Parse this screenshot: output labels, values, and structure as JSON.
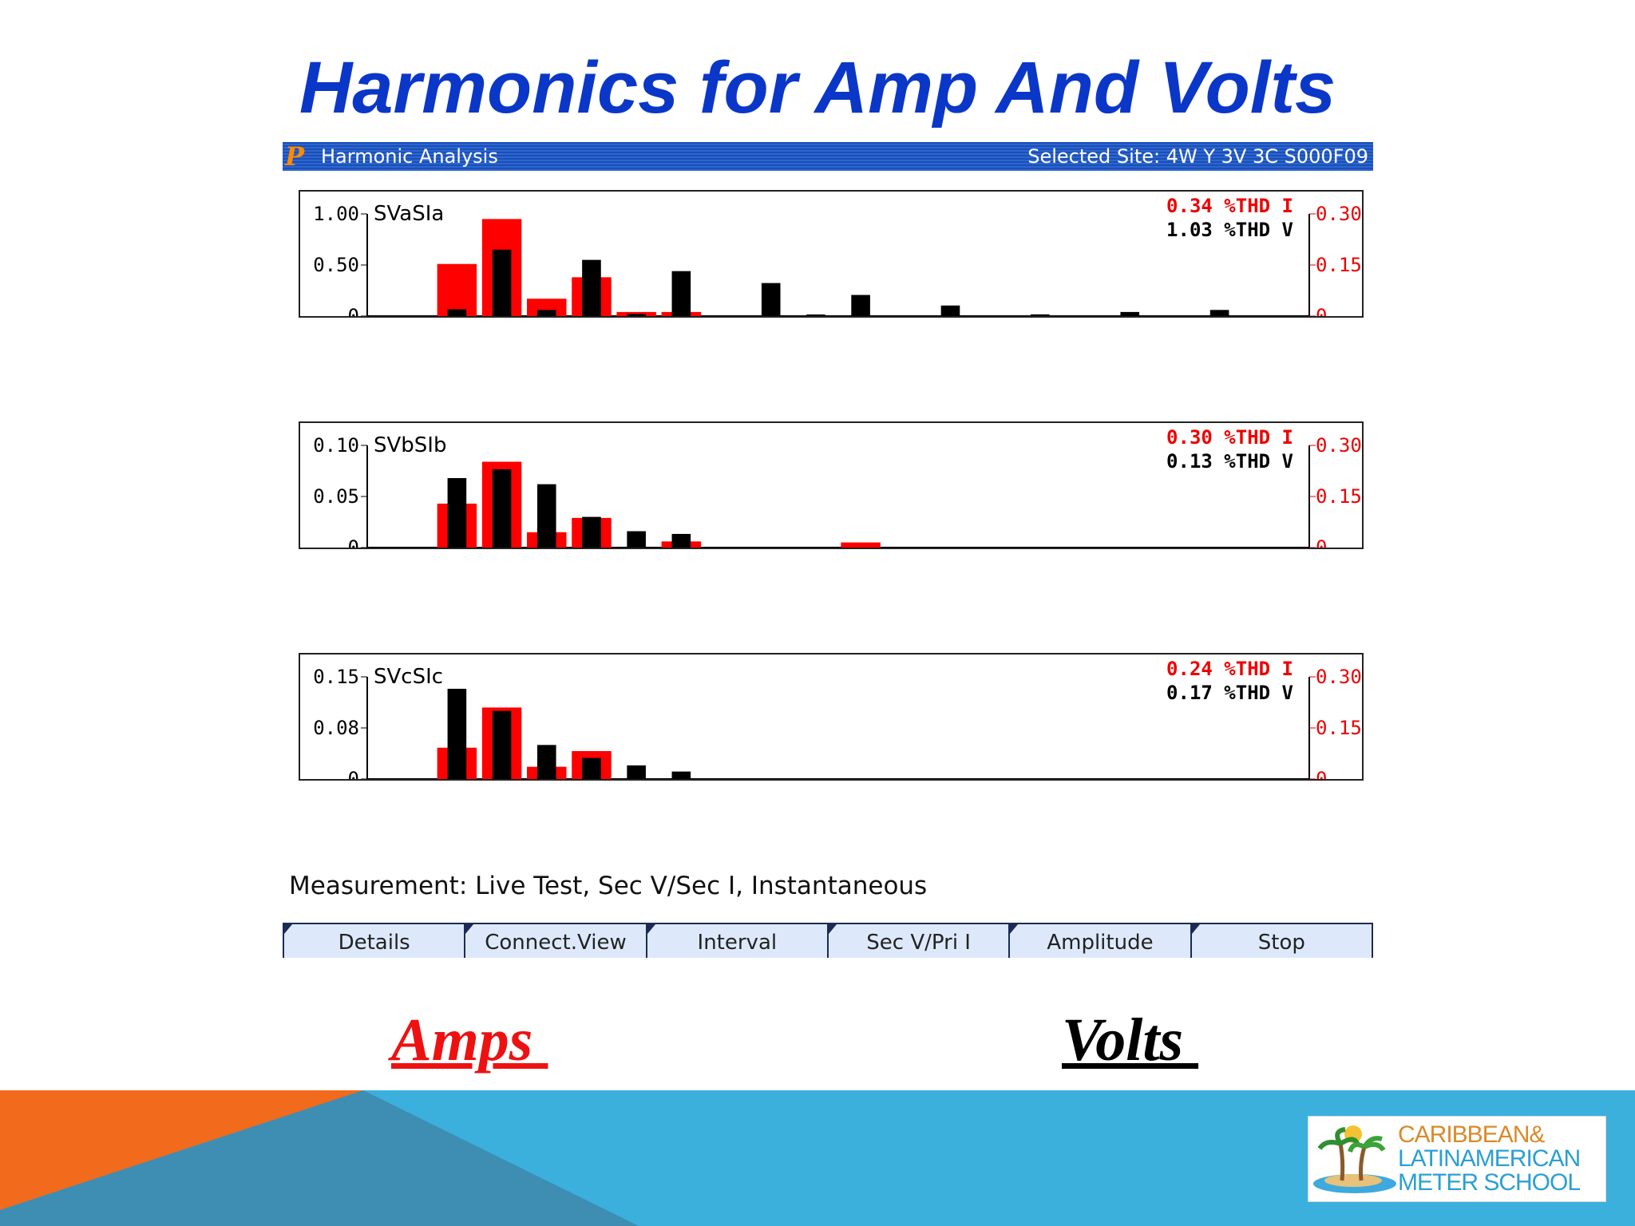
{
  "slide": {
    "title": "Harmonics for Amp And Volts",
    "amps_label": "Amps ",
    "volts_label": "Volts "
  },
  "window": {
    "title": "Harmonic Analysis",
    "selected_site": "Selected Site: 4W Y 3V 3C S000F09",
    "logo_letter": "P"
  },
  "measurement": "Measurement: Live Test, Sec V/Sec I, Instantaneous",
  "softkeys": [
    "Details",
    "Connect.View",
    "Interval",
    "Sec V/Pri I",
    "Amplitude",
    "Stop"
  ],
  "logo_lines": [
    "CARIBBEAN&",
    "LATINAMERICAN",
    "METER SCHOOL"
  ],
  "colors": {
    "current": "#ff0000",
    "voltage": "#000000",
    "title": "#0b37c8"
  },
  "chart_data": [
    {
      "type": "bar",
      "name": "SVaSIa",
      "thd_i": "0.34 %THD I",
      "thd_v": "1.03 %THD V",
      "x_ticks": [
        "10",
        "20"
      ],
      "xlim": [
        0,
        21
      ],
      "left_axis": {
        "ticks": [
          "1.00",
          "0.50",
          "0"
        ],
        "range": [
          0,
          1.0
        ]
      },
      "right_axis": {
        "ticks": [
          "0.30",
          "0.15",
          "0"
        ],
        "range": [
          0,
          0.3
        ]
      },
      "series": [
        {
          "axis": "left",
          "color": "#ff0000",
          "x": [
            2,
            3,
            4,
            5,
            6,
            7
          ],
          "values": [
            0.51,
            0.95,
            0.17,
            0.38,
            0.04,
            0.04
          ]
        },
        {
          "axis": "right",
          "color": "#000000",
          "x": [
            2,
            3,
            4,
            5,
            6,
            7,
            9,
            10,
            11,
            13,
            15,
            17,
            19
          ],
          "values": [
            0.02,
            0.195,
            0.018,
            0.165,
            0.006,
            0.132,
            0.097,
            0.003,
            0.062,
            0.031,
            0.005,
            0.012,
            0.018
          ]
        }
      ]
    },
    {
      "type": "bar",
      "name": "SVbSIb",
      "thd_i": "0.30 %THD I",
      "thd_v": "0.13 %THD V",
      "x_ticks": [
        "10",
        "20"
      ],
      "xlim": [
        0,
        21
      ],
      "left_axis": {
        "ticks": [
          "0.10",
          "0.05",
          "0"
        ],
        "range": [
          0,
          0.1
        ]
      },
      "right_axis": {
        "ticks": [
          "0.30",
          "0.15",
          "0"
        ],
        "range": [
          0,
          0.3
        ]
      },
      "series": [
        {
          "axis": "left",
          "color": "#ff0000",
          "x": [
            2,
            3,
            4,
            5,
            7,
            11
          ],
          "values": [
            0.043,
            0.084,
            0.015,
            0.029,
            0.006,
            0.005
          ]
        },
        {
          "axis": "right",
          "color": "#000000",
          "x": [
            2,
            3,
            4,
            5,
            6,
            7
          ],
          "values": [
            0.204,
            0.23,
            0.186,
            0.09,
            0.048,
            0.04
          ]
        }
      ]
    },
    {
      "type": "bar",
      "name": "SVcSIc",
      "thd_i": "0.24 %THD I",
      "thd_v": "0.17 %THD V",
      "x_ticks": [
        "10",
        "20"
      ],
      "xlim": [
        0,
        21
      ],
      "left_axis": {
        "ticks": [
          "0.15",
          "0.08",
          "0"
        ],
        "range": [
          0,
          0.15
        ]
      },
      "right_axis": {
        "ticks": [
          "0.30",
          "0.15",
          "0"
        ],
        "range": [
          0,
          0.3
        ]
      },
      "series": [
        {
          "axis": "left",
          "color": "#ff0000",
          "x": [
            2,
            3,
            4,
            5
          ],
          "values": [
            0.046,
            0.105,
            0.018,
            0.041
          ]
        },
        {
          "axis": "right",
          "color": "#000000",
          "x": [
            2,
            3,
            4,
            5,
            6,
            7
          ],
          "values": [
            0.265,
            0.2,
            0.1,
            0.062,
            0.04,
            0.022
          ]
        }
      ]
    }
  ]
}
